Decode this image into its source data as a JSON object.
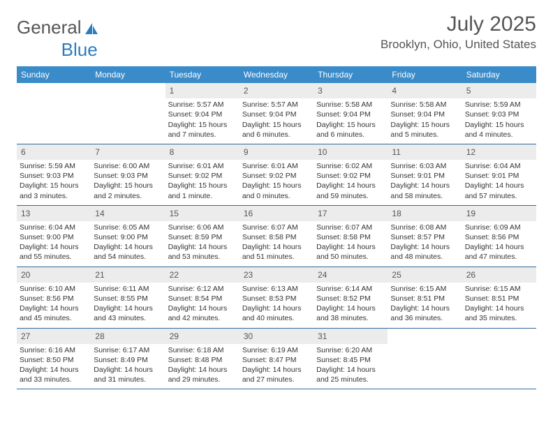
{
  "logo": {
    "text1": "General",
    "text2": "Blue"
  },
  "title": "July 2025",
  "location": "Brooklyn, Ohio, United States",
  "colors": {
    "header_bg": "#3a8bc9",
    "header_text": "#ffffff",
    "daynum_bg": "#ececec",
    "week_border": "#2d6a9e",
    "logo_blue": "#2d7cc0",
    "text": "#555555"
  },
  "weekdays": [
    "Sunday",
    "Monday",
    "Tuesday",
    "Wednesday",
    "Thursday",
    "Friday",
    "Saturday"
  ],
  "weeks": [
    [
      null,
      null,
      {
        "n": "1",
        "sr": "5:57 AM",
        "ss": "9:04 PM",
        "dl": "15 hours and 7 minutes."
      },
      {
        "n": "2",
        "sr": "5:57 AM",
        "ss": "9:04 PM",
        "dl": "15 hours and 6 minutes."
      },
      {
        "n": "3",
        "sr": "5:58 AM",
        "ss": "9:04 PM",
        "dl": "15 hours and 6 minutes."
      },
      {
        "n": "4",
        "sr": "5:58 AM",
        "ss": "9:04 PM",
        "dl": "15 hours and 5 minutes."
      },
      {
        "n": "5",
        "sr": "5:59 AM",
        "ss": "9:03 PM",
        "dl": "15 hours and 4 minutes."
      }
    ],
    [
      {
        "n": "6",
        "sr": "5:59 AM",
        "ss": "9:03 PM",
        "dl": "15 hours and 3 minutes."
      },
      {
        "n": "7",
        "sr": "6:00 AM",
        "ss": "9:03 PM",
        "dl": "15 hours and 2 minutes."
      },
      {
        "n": "8",
        "sr": "6:01 AM",
        "ss": "9:02 PM",
        "dl": "15 hours and 1 minute."
      },
      {
        "n": "9",
        "sr": "6:01 AM",
        "ss": "9:02 PM",
        "dl": "15 hours and 0 minutes."
      },
      {
        "n": "10",
        "sr": "6:02 AM",
        "ss": "9:02 PM",
        "dl": "14 hours and 59 minutes."
      },
      {
        "n": "11",
        "sr": "6:03 AM",
        "ss": "9:01 PM",
        "dl": "14 hours and 58 minutes."
      },
      {
        "n": "12",
        "sr": "6:04 AM",
        "ss": "9:01 PM",
        "dl": "14 hours and 57 minutes."
      }
    ],
    [
      {
        "n": "13",
        "sr": "6:04 AM",
        "ss": "9:00 PM",
        "dl": "14 hours and 55 minutes."
      },
      {
        "n": "14",
        "sr": "6:05 AM",
        "ss": "9:00 PM",
        "dl": "14 hours and 54 minutes."
      },
      {
        "n": "15",
        "sr": "6:06 AM",
        "ss": "8:59 PM",
        "dl": "14 hours and 53 minutes."
      },
      {
        "n": "16",
        "sr": "6:07 AM",
        "ss": "8:58 PM",
        "dl": "14 hours and 51 minutes."
      },
      {
        "n": "17",
        "sr": "6:07 AM",
        "ss": "8:58 PM",
        "dl": "14 hours and 50 minutes."
      },
      {
        "n": "18",
        "sr": "6:08 AM",
        "ss": "8:57 PM",
        "dl": "14 hours and 48 minutes."
      },
      {
        "n": "19",
        "sr": "6:09 AM",
        "ss": "8:56 PM",
        "dl": "14 hours and 47 minutes."
      }
    ],
    [
      {
        "n": "20",
        "sr": "6:10 AM",
        "ss": "8:56 PM",
        "dl": "14 hours and 45 minutes."
      },
      {
        "n": "21",
        "sr": "6:11 AM",
        "ss": "8:55 PM",
        "dl": "14 hours and 43 minutes."
      },
      {
        "n": "22",
        "sr": "6:12 AM",
        "ss": "8:54 PM",
        "dl": "14 hours and 42 minutes."
      },
      {
        "n": "23",
        "sr": "6:13 AM",
        "ss": "8:53 PM",
        "dl": "14 hours and 40 minutes."
      },
      {
        "n": "24",
        "sr": "6:14 AM",
        "ss": "8:52 PM",
        "dl": "14 hours and 38 minutes."
      },
      {
        "n": "25",
        "sr": "6:15 AM",
        "ss": "8:51 PM",
        "dl": "14 hours and 36 minutes."
      },
      {
        "n": "26",
        "sr": "6:15 AM",
        "ss": "8:51 PM",
        "dl": "14 hours and 35 minutes."
      }
    ],
    [
      {
        "n": "27",
        "sr": "6:16 AM",
        "ss": "8:50 PM",
        "dl": "14 hours and 33 minutes."
      },
      {
        "n": "28",
        "sr": "6:17 AM",
        "ss": "8:49 PM",
        "dl": "14 hours and 31 minutes."
      },
      {
        "n": "29",
        "sr": "6:18 AM",
        "ss": "8:48 PM",
        "dl": "14 hours and 29 minutes."
      },
      {
        "n": "30",
        "sr": "6:19 AM",
        "ss": "8:47 PM",
        "dl": "14 hours and 27 minutes."
      },
      {
        "n": "31",
        "sr": "6:20 AM",
        "ss": "8:45 PM",
        "dl": "14 hours and 25 minutes."
      },
      null,
      null
    ]
  ],
  "labels": {
    "sunrise": "Sunrise: ",
    "sunset": "Sunset: ",
    "daylight": "Daylight: "
  }
}
